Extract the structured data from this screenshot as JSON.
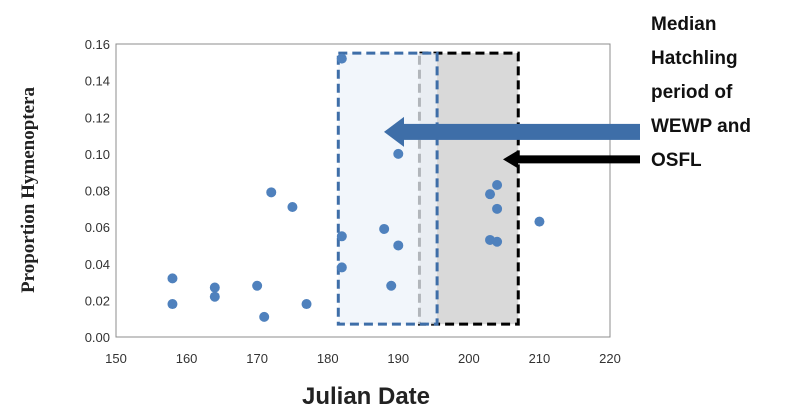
{
  "chart_data": {
    "type": "scatter",
    "xlabel": "Julian Date",
    "ylabel": "Proportion Hymenoptera",
    "xlim": [
      150,
      220
    ],
    "ylim": [
      0,
      0.16
    ],
    "x_ticks": [
      "150",
      "160",
      "170",
      "180",
      "190",
      "200",
      "210",
      "220"
    ],
    "y_ticks": [
      "0.00",
      "0.02",
      "0.04",
      "0.06",
      "0.08",
      "0.10",
      "0.12",
      "0.14",
      "0.16"
    ],
    "grid": false,
    "point_color": "#4f81bd",
    "points": [
      {
        "x": 158,
        "y": 0.032
      },
      {
        "x": 158,
        "y": 0.018
      },
      {
        "x": 164,
        "y": 0.027
      },
      {
        "x": 164,
        "y": 0.022
      },
      {
        "x": 170,
        "y": 0.028
      },
      {
        "x": 171,
        "y": 0.011
      },
      {
        "x": 172,
        "y": 0.079
      },
      {
        "x": 175,
        "y": 0.071
      },
      {
        "x": 177,
        "y": 0.018
      },
      {
        "x": 182,
        "y": 0.152
      },
      {
        "x": 182,
        "y": 0.055
      },
      {
        "x": 182,
        "y": 0.038
      },
      {
        "x": 188,
        "y": 0.059
      },
      {
        "x": 189,
        "y": 0.028
      },
      {
        "x": 190,
        "y": 0.1
      },
      {
        "x": 190,
        "y": 0.05
      },
      {
        "x": 203,
        "y": 0.078
      },
      {
        "x": 203,
        "y": 0.053
      },
      {
        "x": 204,
        "y": 0.083
      },
      {
        "x": 204,
        "y": 0.07
      },
      {
        "x": 204,
        "y": 0.052
      },
      {
        "x": 210,
        "y": 0.063
      }
    ],
    "regions": [
      {
        "x_start": 193,
        "x_end": 207,
        "y_start": 0.007,
        "y_end": 0.155,
        "fill": "#d9d9d9",
        "stroke": "#000000"
      },
      {
        "x_start": 181.5,
        "x_end": 195.5,
        "y_start": 0.007,
        "y_end": 0.155,
        "fill": "#eef3fa",
        "stroke": "#3e6ea8"
      }
    ],
    "arrows": [
      {
        "color": "#3e6ea8",
        "y": 0.112
      },
      {
        "color": "#000000",
        "y": 0.097
      }
    ],
    "annotation": [
      "Median",
      "Hatchling",
      "period of",
      "WEWP and",
      "OSFL"
    ]
  }
}
